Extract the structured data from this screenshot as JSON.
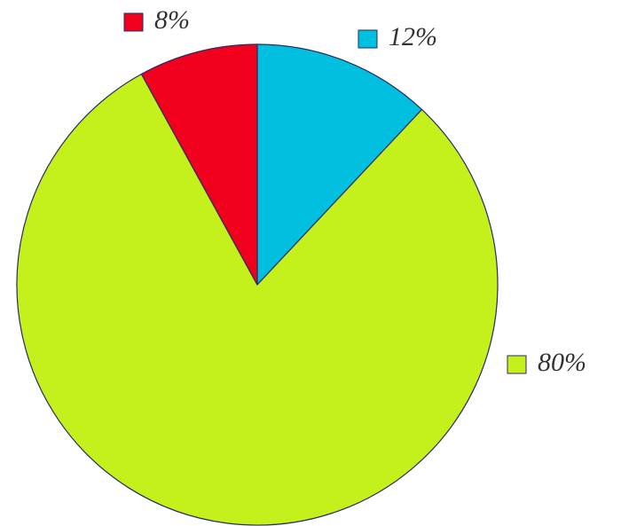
{
  "chart_data": {
    "type": "pie",
    "values": [
      12,
      80,
      8
    ],
    "value_labels": [
      "12%",
      "80%",
      "8%"
    ],
    "colors": [
      "#00bfdf",
      "#c4f01c",
      "#f0001c"
    ]
  }
}
